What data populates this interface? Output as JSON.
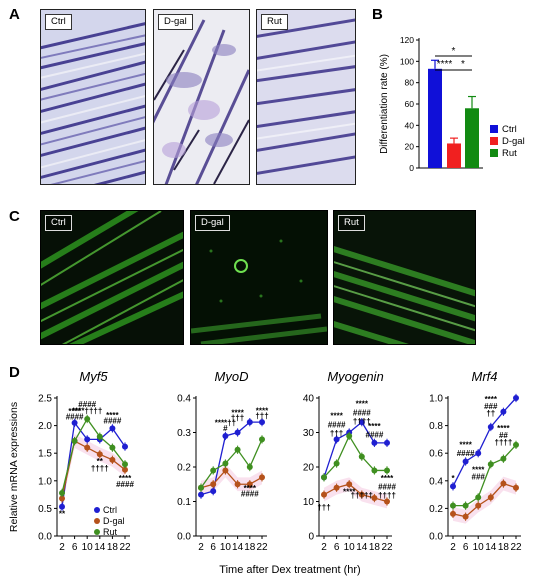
{
  "panels": {
    "A": {
      "letter": "A",
      "images": [
        {
          "label": "Ctrl"
        },
        {
          "label": "D-gal"
        },
        {
          "label": "Rut"
        }
      ]
    },
    "B": {
      "letter": "B"
    },
    "C": {
      "letter": "C",
      "images": [
        {
          "label": "Ctrl"
        },
        {
          "label": "D-gal"
        },
        {
          "label": "Rut"
        }
      ]
    },
    "D": {
      "letter": "D"
    }
  },
  "colors": {
    "ctrl": "#1f1fd1",
    "dgal": "#b5521b",
    "rut": "#3f8f20",
    "bar_ctrl": "#1010d8",
    "bar_dgal": "#f02020",
    "bar_rut": "#128a12",
    "shade": "#f8d9ea"
  },
  "chart_data": [
    {
      "type": "bar",
      "categories": [
        "Ctrl",
        "D-gal",
        "Rut"
      ],
      "values": [
        93,
        23,
        56
      ],
      "errors": [
        8,
        5,
        11
      ],
      "ylabel": "Differentiation rate (%)",
      "ylim": [
        0,
        120
      ],
      "yticks": [
        0,
        20,
        40,
        60,
        80,
        100,
        120
      ],
      "legend": [
        "Ctrl",
        "D-gal",
        "Rut"
      ],
      "legend_position": "right",
      "significance": [
        {
          "from": "Ctrl",
          "to": "D-gal",
          "label": "****"
        },
        {
          "from": "D-gal",
          "to": "Rut",
          "label": "*"
        },
        {
          "from": "Ctrl",
          "to": "Rut",
          "label": "*"
        }
      ]
    },
    {
      "type": "line",
      "title": "Myf5",
      "ylabel": "Relative mRNA expressions",
      "x": [
        2,
        6,
        10,
        14,
        18,
        22
      ],
      "ylim": [
        0,
        2.5
      ],
      "yticks": [
        "0.0",
        "0.5",
        "1.0",
        "1.5",
        "2.0",
        "2.5"
      ],
      "series": [
        {
          "name": "Ctrl",
          "values": [
            0.53,
            2.05,
            1.75,
            1.75,
            1.95,
            1.62
          ]
        },
        {
          "name": "D-gal",
          "values": [
            0.68,
            1.72,
            1.6,
            1.48,
            1.38,
            1.2
          ]
        },
        {
          "name": "Rut",
          "values": [
            0.78,
            1.72,
            2.12,
            1.8,
            1.6,
            1.3
          ]
        }
      ],
      "annotations": [
        {
          "x": 2,
          "y": 0.35,
          "text": "**"
        },
        {
          "x": 6,
          "y": 2.21,
          "text": "****"
        },
        {
          "x": 6,
          "y": 2.11,
          "text": "####"
        },
        {
          "x": 10,
          "y": 2.34,
          "text": "####"
        },
        {
          "x": 10,
          "y": 2.22,
          "text": "****††††"
        },
        {
          "x": 14,
          "y": 1.3,
          "text": "**"
        },
        {
          "x": 14,
          "y": 1.18,
          "text": "††††"
        },
        {
          "x": 18,
          "y": 2.14,
          "text": "****"
        },
        {
          "x": 18,
          "y": 2.04,
          "text": "####"
        },
        {
          "x": 22,
          "y": 1.0,
          "text": "****"
        },
        {
          "x": 22,
          "y": 0.89,
          "text": "####"
        }
      ],
      "legend": [
        "Ctrl",
        "D-gal",
        "Rut"
      ]
    },
    {
      "type": "line",
      "title": "MyoD",
      "x": [
        2,
        6,
        10,
        14,
        18,
        22
      ],
      "ylim": [
        0,
        0.4
      ],
      "yticks": [
        "0.0",
        "0.1",
        "0.2",
        "0.3",
        "0.4"
      ],
      "series": [
        {
          "name": "Ctrl",
          "values": [
            0.12,
            0.13,
            0.29,
            0.3,
            0.33,
            0.33
          ]
        },
        {
          "name": "D-gal",
          "values": [
            0.14,
            0.15,
            0.19,
            0.15,
            0.15,
            0.17
          ]
        },
        {
          "name": "Rut",
          "values": [
            0.14,
            0.19,
            0.21,
            0.25,
            0.2,
            0.28
          ]
        }
      ],
      "annotations": [
        {
          "x": 10,
          "y": 0.32,
          "text": "****††"
        },
        {
          "x": 10,
          "y": 0.305,
          "text": "#"
        },
        {
          "x": 14,
          "y": 0.35,
          "text": "****"
        },
        {
          "x": 14,
          "y": 0.335,
          "text": "†††"
        },
        {
          "x": 22,
          "y": 0.355,
          "text": "****"
        },
        {
          "x": 22,
          "y": 0.34,
          "text": "†††"
        },
        {
          "x": 18,
          "y": 0.13,
          "text": "****"
        },
        {
          "x": 18,
          "y": 0.115,
          "text": "####"
        }
      ]
    },
    {
      "type": "line",
      "title": "Myogenin",
      "x": [
        2,
        6,
        10,
        14,
        18,
        22
      ],
      "ylim": [
        0,
        40
      ],
      "yticks": [
        "0",
        "10",
        "20",
        "30",
        "40"
      ],
      "series": [
        {
          "name": "Ctrl",
          "values": [
            17,
            28,
            30,
            33,
            27,
            27
          ]
        },
        {
          "name": "D-gal",
          "values": [
            12,
            14,
            15,
            12,
            11,
            10
          ]
        },
        {
          "name": "Rut",
          "values": [
            17,
            21,
            29,
            23,
            19,
            19
          ]
        }
      ],
      "annotations": [
        {
          "x": 2,
          "y": 7.5,
          "text": "†††"
        },
        {
          "x": 6,
          "y": 34,
          "text": "****"
        },
        {
          "x": 6,
          "y": 31.5,
          "text": "####"
        },
        {
          "x": 6,
          "y": 29,
          "text": "†††"
        },
        {
          "x": 14,
          "y": 37.5,
          "text": "****"
        },
        {
          "x": 14,
          "y": 35,
          "text": "####"
        },
        {
          "x": 14,
          "y": 32.5,
          "text": "††††"
        },
        {
          "x": 14,
          "y": 11,
          "text": "†††††"
        },
        {
          "x": 18,
          "y": 31,
          "text": "****"
        },
        {
          "x": 18,
          "y": 28.5,
          "text": "####"
        },
        {
          "x": 10,
          "y": 12,
          "text": "****"
        },
        {
          "x": 22,
          "y": 16,
          "text": "****"
        },
        {
          "x": 22,
          "y": 13.5,
          "text": "####"
        },
        {
          "x": 22,
          "y": 11,
          "text": "††††"
        }
      ]
    },
    {
      "type": "line",
      "title": "Mrf4",
      "x": [
        2,
        6,
        10,
        14,
        18,
        22
      ],
      "ylim": [
        0,
        1.0
      ],
      "yticks": [
        "0.0",
        "0.2",
        "0.4",
        "0.6",
        "0.8",
        "1.0"
      ],
      "series": [
        {
          "name": "Ctrl",
          "values": [
            0.36,
            0.54,
            0.6,
            0.79,
            0.9,
            1.0
          ]
        },
        {
          "name": "D-gal",
          "values": [
            0.16,
            0.14,
            0.22,
            0.28,
            0.38,
            0.35
          ]
        },
        {
          "name": "Rut",
          "values": [
            0.22,
            0.22,
            0.28,
            0.52,
            0.56,
            0.66
          ]
        }
      ],
      "annotations": [
        {
          "x": 2,
          "y": 0.4,
          "text": "*"
        },
        {
          "x": 6,
          "y": 0.64,
          "text": "****"
        },
        {
          "x": 6,
          "y": 0.58,
          "text": "####"
        },
        {
          "x": 10,
          "y": 0.46,
          "text": "****"
        },
        {
          "x": 10,
          "y": 0.41,
          "text": "###"
        },
        {
          "x": 14,
          "y": 0.97,
          "text": "****"
        },
        {
          "x": 14,
          "y": 0.92,
          "text": "###"
        },
        {
          "x": 14,
          "y": 0.87,
          "text": "††"
        },
        {
          "x": 18,
          "y": 0.76,
          "text": "****"
        },
        {
          "x": 18,
          "y": 0.71,
          "text": "##"
        },
        {
          "x": 18,
          "y": 0.66,
          "text": "††††"
        }
      ]
    }
  ],
  "xlabel_D": "Time after Dex treatment (hr)"
}
